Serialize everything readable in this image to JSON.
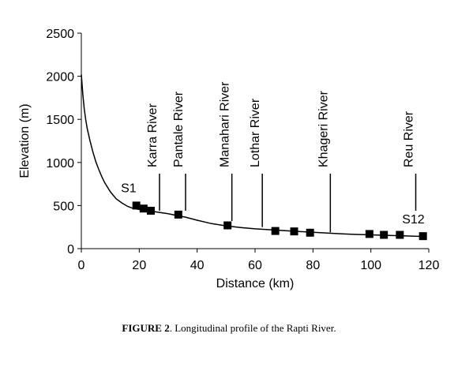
{
  "chart_data": {
    "type": "line",
    "xlabel": "Distance (km)",
    "ylabel": "Elevation (m)",
    "xlim": [
      0,
      120
    ],
    "ylim": [
      0,
      2500
    ],
    "x_ticks": [
      0,
      20,
      40,
      60,
      80,
      100,
      120
    ],
    "y_ticks": [
      0,
      500,
      1000,
      1500,
      2000,
      2500
    ],
    "grid": false,
    "profile": {
      "x": [
        0,
        0.5,
        1,
        1.5,
        2,
        3,
        4,
        5,
        6,
        7,
        8,
        10,
        12,
        14,
        16,
        18,
        19,
        21,
        23,
        25,
        27,
        30,
        33,
        36,
        40,
        45,
        50,
        55,
        60,
        65,
        70,
        75,
        80,
        85,
        90,
        95,
        100,
        105,
        110,
        115,
        118
      ],
      "y": [
        2020,
        1800,
        1620,
        1500,
        1400,
        1250,
        1120,
        1010,
        920,
        840,
        770,
        660,
        580,
        530,
        490,
        465,
        460,
        450,
        440,
        430,
        420,
        405,
        385,
        365,
        330,
        290,
        265,
        245,
        230,
        220,
        210,
        200,
        190,
        180,
        172,
        165,
        160,
        155,
        150,
        145,
        142
      ]
    },
    "sites": {
      "x": [
        19,
        21.5,
        24,
        33.5,
        50.5,
        67,
        73.5,
        79,
        99.5,
        104.5,
        110,
        118
      ],
      "y": [
        500,
        465,
        440,
        395,
        270,
        205,
        200,
        185,
        170,
        160,
        160,
        145
      ]
    },
    "site_labels": [
      {
        "text": "S1",
        "x": 19,
        "y": 500
      },
      {
        "text": "S12",
        "x": 118,
        "y": 145
      }
    ],
    "tributaries": [
      {
        "name": "Karra River",
        "x": 27,
        "y_bottom": 440,
        "y_top": 870
      },
      {
        "name": "Pantale River",
        "x": 36,
        "y_bottom": 440,
        "y_top": 870
      },
      {
        "name": "Manahari River",
        "x": 52,
        "y_bottom": 320,
        "y_top": 870
      },
      {
        "name": "Lothar River",
        "x": 62.5,
        "y_bottom": 250,
        "y_top": 870
      },
      {
        "name": "Khageri River",
        "x": 86,
        "y_bottom": 190,
        "y_top": 870
      },
      {
        "name": "Reu River",
        "x": 115.5,
        "y_bottom": 440,
        "y_top": 870
      }
    ],
    "line_color": "#000000",
    "marker_color": "#000000"
  },
  "caption": {
    "label": "FIGURE 2",
    "text": ". Longitudinal profile of the Rapti River."
  }
}
